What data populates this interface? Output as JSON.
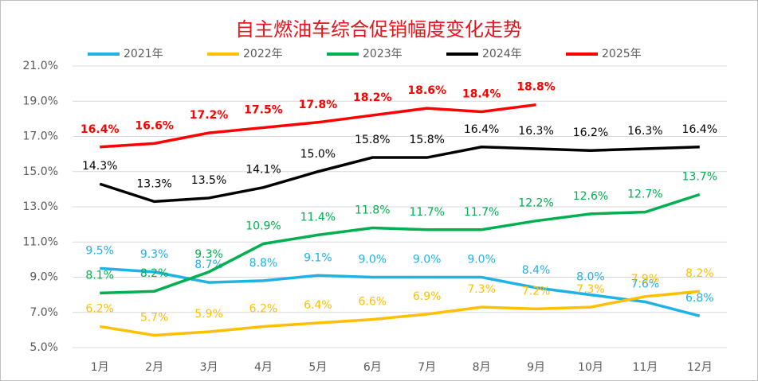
{
  "chart_data": {
    "type": "line",
    "title": "自主燃油车综合促销幅度变化走势",
    "categories": [
      "1月",
      "2月",
      "3月",
      "4月",
      "5月",
      "6月",
      "7月",
      "8月",
      "9月",
      "10月",
      "11月",
      "12月"
    ],
    "ylim": [
      5,
      21
    ],
    "yticks": [
      {
        "value": 5,
        "label": "5.0%"
      },
      {
        "value": 7,
        "label": "7.0%"
      },
      {
        "value": 9,
        "label": "9.0%"
      },
      {
        "value": 11,
        "label": "11.0%"
      },
      {
        "value": 13,
        "label": "13.0%"
      },
      {
        "value": 15,
        "label": "15.0%"
      },
      {
        "value": 17,
        "label": "17.0%"
      },
      {
        "value": 19,
        "label": "19.0%"
      },
      {
        "value": 21,
        "label": "21.0%"
      }
    ],
    "grid": true,
    "legend": "top",
    "series": [
      {
        "name": "2021年",
        "color": "#1fb2e6",
        "values": [
          9.5,
          9.3,
          8.7,
          8.8,
          9.1,
          9.0,
          9.0,
          9.0,
          8.4,
          8.0,
          7.6,
          6.8
        ],
        "value_labels": [
          "9.5%",
          "9.3%",
          "8.7%",
          "8.8%",
          "9.1%",
          "9.0%",
          "9.0%",
          "9.0%",
          "8.4%",
          "8.0%",
          "7.6%",
          "6.8%"
        ]
      },
      {
        "name": "2022年",
        "color": "#ffc000",
        "values": [
          6.2,
          5.7,
          5.9,
          6.2,
          6.4,
          6.6,
          6.9,
          7.3,
          7.2,
          7.3,
          7.9,
          8.2
        ],
        "value_labels": [
          "6.2%",
          "5.7%",
          "5.9%",
          "6.2%",
          "6.4%",
          "6.6%",
          "6.9%",
          "7.3%",
          "7.2%",
          "7.3%",
          "7.9%",
          "8.2%"
        ]
      },
      {
        "name": "2023年",
        "color": "#00b050",
        "values": [
          8.1,
          8.2,
          9.3,
          10.9,
          11.4,
          11.8,
          11.7,
          11.7,
          12.2,
          12.6,
          12.7,
          13.7
        ],
        "value_labels": [
          "8.1%",
          "8.2%",
          "9.3%",
          "10.9%",
          "11.4%",
          "11.8%",
          "11.7%",
          "11.7%",
          "12.2%",
          "12.6%",
          "12.7%",
          "13.7%"
        ]
      },
      {
        "name": "2024年",
        "color": "#000000",
        "values": [
          14.3,
          13.3,
          13.5,
          14.1,
          15.0,
          15.8,
          15.8,
          16.4,
          16.3,
          16.2,
          16.3,
          16.4
        ],
        "value_labels": [
          "14.3%",
          "13.3%",
          "13.5%",
          "14.1%",
          "15.0%",
          "15.8%",
          "15.8%",
          "16.4%",
          "16.3%",
          "16.2%",
          "16.3%",
          "16.4%"
        ]
      },
      {
        "name": "2025年",
        "color": "#ff0000",
        "values": [
          16.4,
          16.6,
          17.2,
          17.5,
          17.8,
          18.2,
          18.6,
          18.4,
          18.8,
          null,
          null,
          null
        ],
        "value_labels": [
          "16.4%",
          "16.6%",
          "17.2%",
          "17.5%",
          "17.8%",
          "18.2%",
          "18.6%",
          "18.4%",
          "18.8%",
          null,
          null,
          null
        ]
      }
    ]
  }
}
